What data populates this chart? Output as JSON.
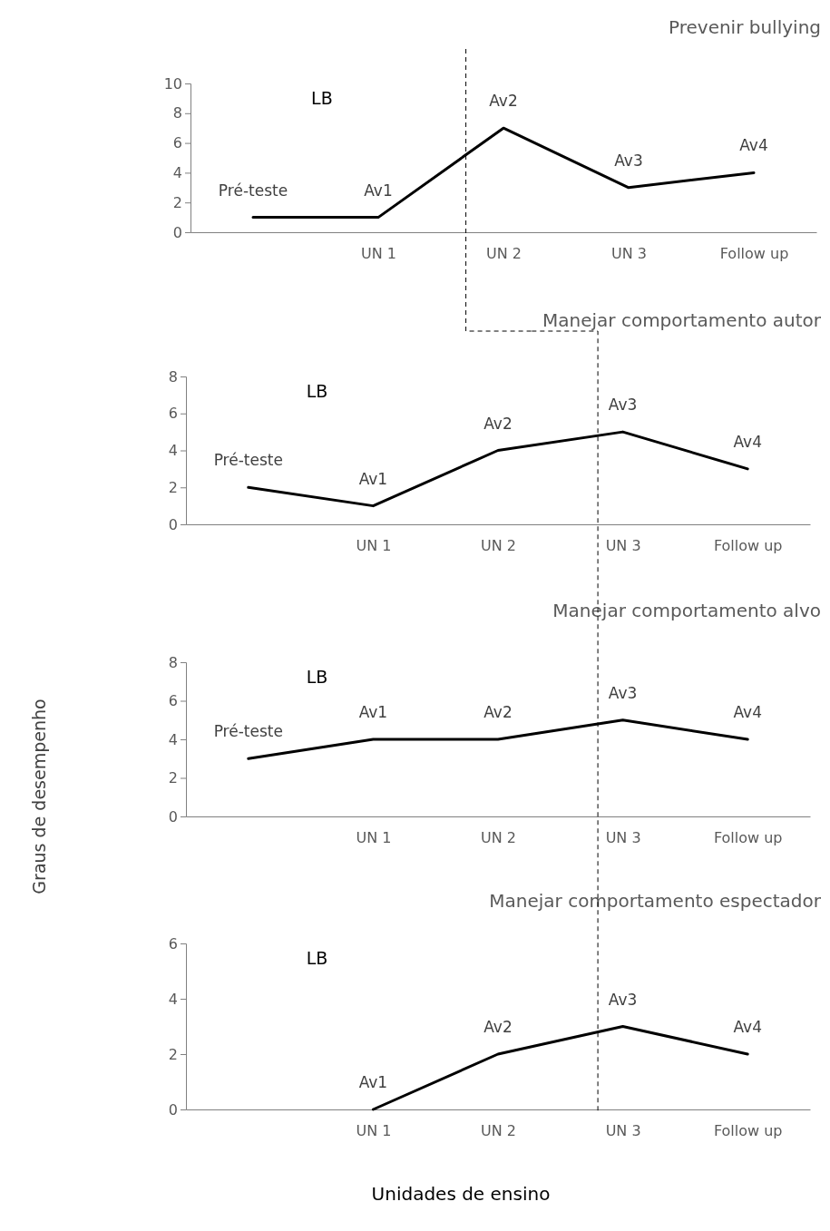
{
  "chart_data": [
    {
      "type": "line",
      "title": "Prevenir bullying",
      "categories": [
        null,
        "UN 1",
        "UN 2",
        "UN 3",
        "Follow up"
      ],
      "values": [
        1,
        1,
        7,
        3,
        4
      ],
      "value_labels": [
        "Pré-teste",
        "Av1",
        "Av2",
        "Av3",
        "Av4"
      ],
      "color": "#000000",
      "ylim": [
        0,
        10
      ],
      "yticks": [
        0,
        2,
        4,
        6,
        8,
        10
      ],
      "annotations": [
        "LB"
      ]
    },
    {
      "type": "line",
      "title": "Manejar comportamento autor",
      "categories": [
        null,
        "UN 1",
        "UN 2",
        "UN 3",
        "Follow up"
      ],
      "values": [
        2,
        1,
        4,
        5,
        3
      ],
      "value_labels": [
        "Pré-teste",
        "Av1",
        "Av2",
        "Av3",
        "Av4"
      ],
      "color": "#000000",
      "ylim": [
        0,
        8
      ],
      "yticks": [
        0,
        2,
        4,
        6,
        8
      ],
      "annotations": [
        "LB"
      ]
    },
    {
      "type": "line",
      "title": "Manejar comportamento alvo",
      "ylabel": "Graus de desempenho",
      "categories": [
        null,
        "UN 1",
        "UN 2",
        "UN 3",
        "Follow up"
      ],
      "values": [
        3,
        4,
        4,
        5,
        4
      ],
      "value_labels": [
        "Pré-teste",
        "Av1",
        "Av2",
        "Av3",
        "Av4"
      ],
      "color": "#000000",
      "ylim": [
        0,
        8
      ],
      "yticks": [
        0,
        2,
        4,
        6,
        8
      ],
      "annotations": [
        "LB"
      ]
    },
    {
      "type": "line",
      "title": "Manejar comportamento espectador",
      "xlabel": "Unidades de ensino",
      "categories": [
        null,
        "UN 1",
        "UN 2",
        "UN 3",
        "Follow up"
      ],
      "values": [
        null,
        0,
        2,
        3,
        2
      ],
      "value_labels": [
        null,
        "Av1",
        "Av2",
        "Av3",
        "Av4"
      ],
      "color": "#000000",
      "ylim": [
        0,
        6
      ],
      "yticks": [
        0,
        2,
        4,
        6
      ],
      "annotations": [
        "LB"
      ]
    }
  ]
}
